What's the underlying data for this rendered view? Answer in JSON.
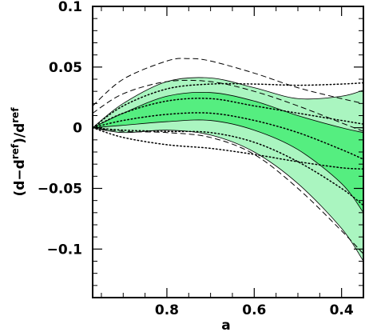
{
  "chart_data": {
    "type": "line",
    "xlabel": "a",
    "ylabel": {
      "open": "(d",
      "minus": "−d",
      "sup1": "ref",
      "mid": ")/d",
      "sup2": "ref"
    },
    "xlim": [
      0.97,
      0.35
    ],
    "ylim": [
      -0.14,
      0.1
    ],
    "x_reversed": true,
    "grid": false,
    "x_ticks": [
      0.8,
      0.6,
      0.4
    ],
    "x_tick_labels": [
      "0.8",
      "0.6",
      "0.4"
    ],
    "y_ticks": [
      0.1,
      0.05,
      0,
      -0.05,
      -0.1
    ],
    "y_tick_labels": [
      "0.1",
      "0.05",
      "0",
      "−0.05",
      "−0.1"
    ],
    "colors": {
      "outer_band": "#aaf5c0",
      "inner_band": "#55ee80",
      "line": "#000000"
    },
    "outer_band": {
      "x": [
        0.97,
        0.9,
        0.8,
        0.7,
        0.6,
        0.5,
        0.4,
        0.35
      ],
      "upper": [
        0.0,
        0.02,
        0.038,
        0.041,
        0.033,
        0.024,
        0.026,
        0.031
      ],
      "lower": [
        0.0,
        -0.004,
        -0.002,
        -0.006,
        -0.02,
        -0.046,
        -0.083,
        -0.11
      ]
    },
    "inner_band": {
      "x": [
        0.97,
        0.9,
        0.8,
        0.7,
        0.6,
        0.5,
        0.4,
        0.35
      ],
      "upper": [
        0.0,
        0.012,
        0.026,
        0.029,
        0.022,
        0.01,
        0.0,
        -0.004
      ],
      "lower": [
        0.0,
        0.002,
        0.005,
        0.006,
        -0.002,
        -0.018,
        -0.046,
        -0.07
      ]
    },
    "dashed_lines": [
      {
        "x": [
          0.97,
          0.9,
          0.8,
          0.75,
          0.7,
          0.6,
          0.5,
          0.4,
          0.35
        ],
        "y": [
          0.018,
          0.04,
          0.055,
          0.057,
          0.055,
          0.045,
          0.033,
          0.024,
          0.02
        ]
      },
      {
        "x": [
          0.97,
          0.9,
          0.8,
          0.7,
          0.6,
          0.5,
          0.4,
          0.35
        ],
        "y": [
          0.012,
          0.028,
          0.038,
          0.038,
          0.03,
          0.018,
          0.004,
          -0.003
        ]
      },
      {
        "x": [
          0.97,
          0.9,
          0.8,
          0.7,
          0.6,
          0.5,
          0.4,
          0.35
        ],
        "y": [
          0.0,
          -0.003,
          -0.004,
          -0.008,
          -0.022,
          -0.05,
          -0.085,
          -0.104
        ]
      }
    ],
    "dotted_lines": [
      {
        "x": [
          0.97,
          0.9,
          0.8,
          0.7,
          0.6,
          0.5,
          0.4,
          0.35
        ],
        "y": [
          0.0,
          0.018,
          0.032,
          0.036,
          0.036,
          0.035,
          0.036,
          0.037
        ]
      },
      {
        "x": [
          0.97,
          0.9,
          0.8,
          0.7,
          0.6,
          0.5,
          0.4,
          0.35
        ],
        "y": [
          0.0,
          0.012,
          0.022,
          0.024,
          0.018,
          0.012,
          0.006,
          0.003
        ]
      },
      {
        "x": [
          0.97,
          0.9,
          0.8,
          0.7,
          0.6,
          0.5,
          0.4,
          0.35
        ],
        "y": [
          0.0,
          0.006,
          0.011,
          0.012,
          0.006,
          -0.004,
          -0.018,
          -0.026
        ]
      },
      {
        "x": [
          0.97,
          0.9,
          0.8,
          0.7,
          0.6,
          0.5,
          0.4,
          0.35
        ],
        "y": [
          0.0,
          -0.002,
          -0.003,
          -0.004,
          -0.012,
          -0.028,
          -0.05,
          -0.064
        ]
      },
      {
        "x": [
          0.97,
          0.9,
          0.8,
          0.7,
          0.6,
          0.5,
          0.4,
          0.35
        ],
        "y": [
          0.0,
          -0.008,
          -0.014,
          -0.017,
          -0.022,
          -0.028,
          -0.033,
          -0.034
        ]
      }
    ]
  }
}
